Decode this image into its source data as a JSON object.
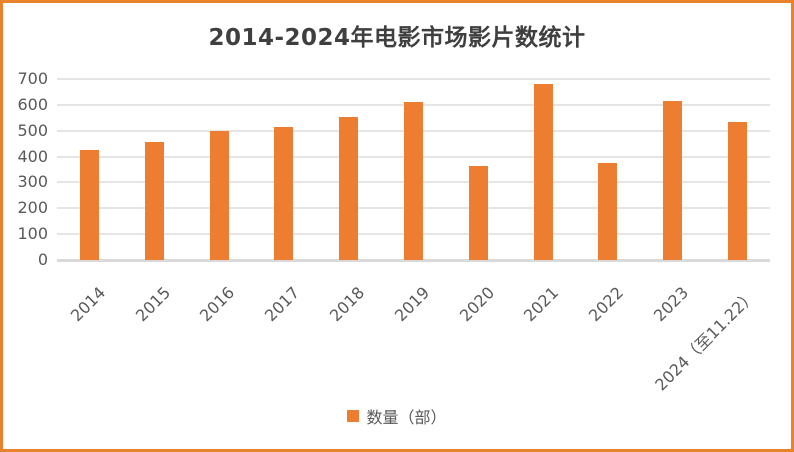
{
  "chart": {
    "colors": {
      "bar": "#ED7D31",
      "frame_border": "#E8822D",
      "gridline": "#E5E5E5",
      "axis_line": "#D9D9D9",
      "title_text": "#3F3F3F",
      "tick_text": "#595959"
    }
  },
  "chart_data": {
    "type": "bar",
    "title": "2014-2024年电影市场影片数统计",
    "categories": [
      "2014",
      "2015",
      "2016",
      "2017",
      "2018",
      "2019",
      "2020",
      "2021",
      "2022",
      "2023",
      "2024（至11.22）"
    ],
    "values": [
      425,
      455,
      500,
      515,
      555,
      610,
      365,
      680,
      375,
      615,
      535
    ],
    "xlabel": "",
    "ylabel": "",
    "ylim": [
      0,
      700
    ],
    "ytick_step": 100,
    "grid": true,
    "legend": [
      "数量（部）"
    ],
    "legend_position": "bottom"
  }
}
